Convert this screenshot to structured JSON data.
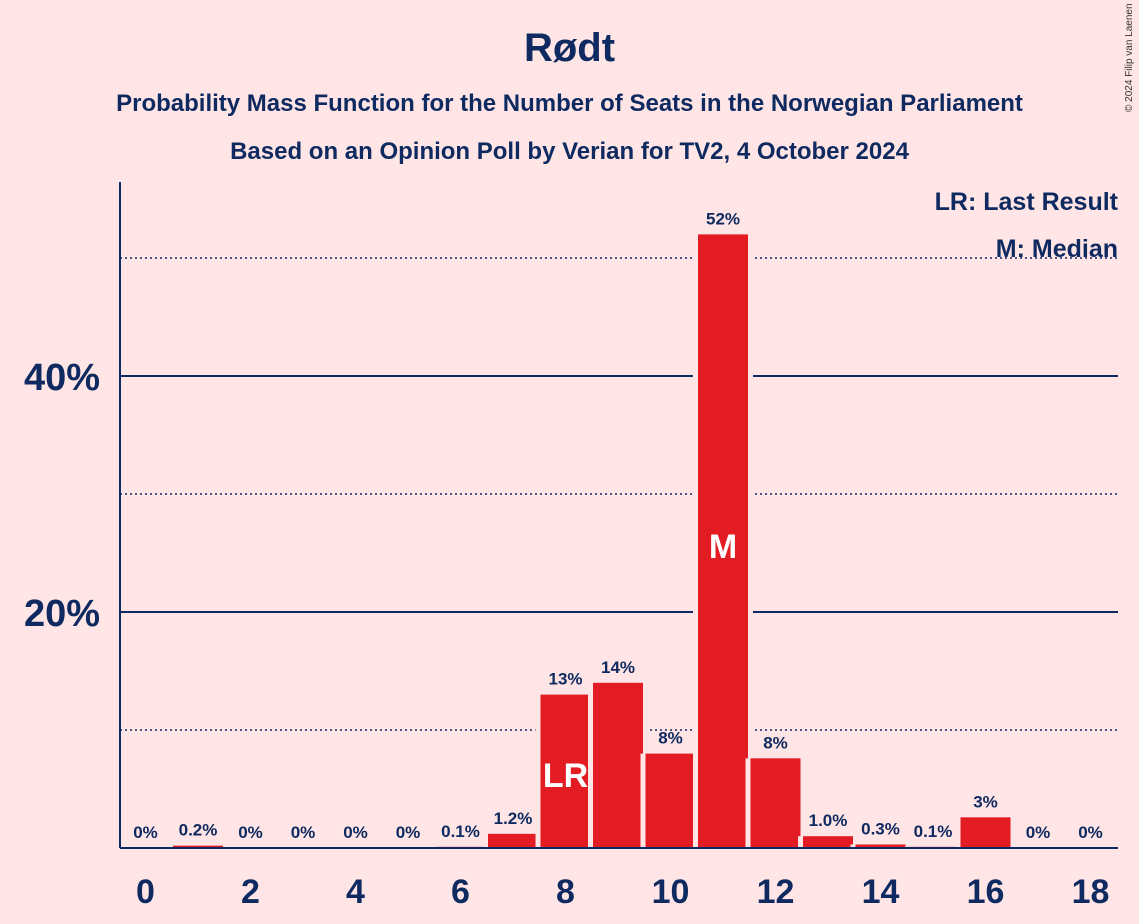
{
  "header": {
    "title": "Rødt",
    "subtitle_1": "Probability Mass Function for the Number of Seats in the Norwegian Parliament",
    "subtitle_2": "Based on an Opinion Poll by Verian for TV2, 4 October 2024",
    "copyright": "© 2024 Filip van Laenen"
  },
  "legend": {
    "last_result": "LR: Last Result",
    "median": "M: Median"
  },
  "colors": {
    "background": "#ffe5e5",
    "bar": "#e31b23",
    "text": "#0f2a60"
  },
  "chart_data": {
    "type": "bar",
    "categories": [
      0,
      1,
      2,
      3,
      4,
      5,
      6,
      7,
      8,
      9,
      10,
      11,
      12,
      13,
      14,
      15,
      16,
      17,
      18
    ],
    "values": [
      0,
      0.2,
      0,
      0,
      0,
      0,
      0.1,
      1.2,
      13,
      14,
      8,
      52,
      7.6,
      1.0,
      0.3,
      0.1,
      2.6,
      0,
      0
    ],
    "labels": [
      "0%",
      "0.2%",
      "0%",
      "0%",
      "0%",
      "0%",
      "0.1%",
      "1.2%",
      "13%",
      "14%",
      "8%",
      "52%",
      "8%",
      "1.0%",
      "0.3%",
      "0.1%",
      "3%",
      "0%",
      "0%"
    ],
    "x_tick_labels": [
      "0",
      "2",
      "4",
      "6",
      "8",
      "10",
      "12",
      "14",
      "16",
      "18"
    ],
    "x_ticks": [
      0,
      2,
      4,
      6,
      8,
      10,
      12,
      14,
      16,
      18
    ],
    "y_ticks": [
      {
        "value": 10,
        "label": "",
        "style": "dotted"
      },
      {
        "value": 20,
        "label": "20%",
        "style": "solid"
      },
      {
        "value": 30,
        "label": "",
        "style": "dotted"
      },
      {
        "value": 40,
        "label": "40%",
        "style": "solid"
      },
      {
        "value": 50,
        "label": "",
        "style": "dotted"
      }
    ],
    "ylim": [
      0,
      56.5
    ],
    "markers": [
      {
        "seat": 8,
        "text": "LR"
      },
      {
        "seat": 11,
        "text": "M"
      }
    ]
  }
}
